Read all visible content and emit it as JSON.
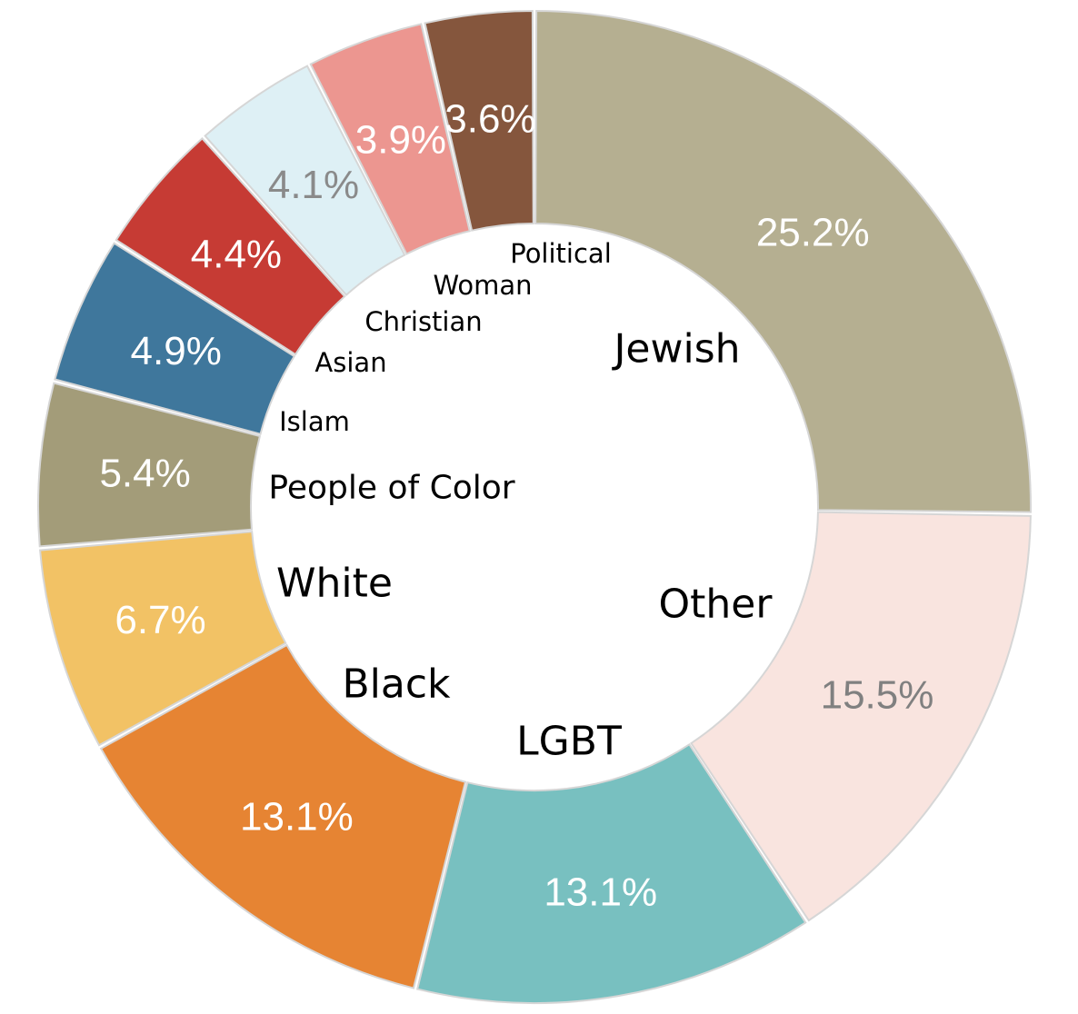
{
  "chart_data": {
    "type": "pie",
    "variant": "donut",
    "title": "",
    "legend": "none",
    "slices": [
      {
        "label": "Jewish",
        "value": 25.2,
        "value_label": "25.2%",
        "color": "#b5af91",
        "text_color": "#ffffff"
      },
      {
        "label": "Other",
        "value": 15.5,
        "value_label": "15.5%",
        "color": "#f9e4df",
        "text_color": "#808080"
      },
      {
        "label": "LGBT",
        "value": 13.1,
        "value_label": "13.1%",
        "color": "#78c0c0",
        "text_color": "#ffffff"
      },
      {
        "label": "Black",
        "value": 13.1,
        "value_label": "13.1%",
        "color": "#e68433",
        "text_color": "#ffffff"
      },
      {
        "label": "White",
        "value": 6.7,
        "value_label": "6.7%",
        "color": "#f2c265",
        "text_color": "#ffffff"
      },
      {
        "label": "People of Color",
        "value": 5.4,
        "value_label": "5.4%",
        "color": "#a39c79",
        "text_color": "#ffffff"
      },
      {
        "label": "Islam",
        "value": 4.9,
        "value_label": "4.9%",
        "color": "#3f779c",
        "text_color": "#ffffff"
      },
      {
        "label": "Asian",
        "value": 4.4,
        "value_label": "4.4%",
        "color": "#c63b34",
        "text_color": "#ffffff"
      },
      {
        "label": "Christian",
        "value": 4.1,
        "value_label": "4.1%",
        "color": "#def0f5",
        "text_color": "#8a8a8a"
      },
      {
        "label": "Woman",
        "value": 3.9,
        "value_label": "3.9%",
        "color": "#ec9690",
        "text_color": "#ffffff"
      },
      {
        "label": "Political",
        "value": 3.6,
        "value_label": "3.6%",
        "color": "#85563d",
        "text_color": "#ffffff"
      }
    ]
  }
}
